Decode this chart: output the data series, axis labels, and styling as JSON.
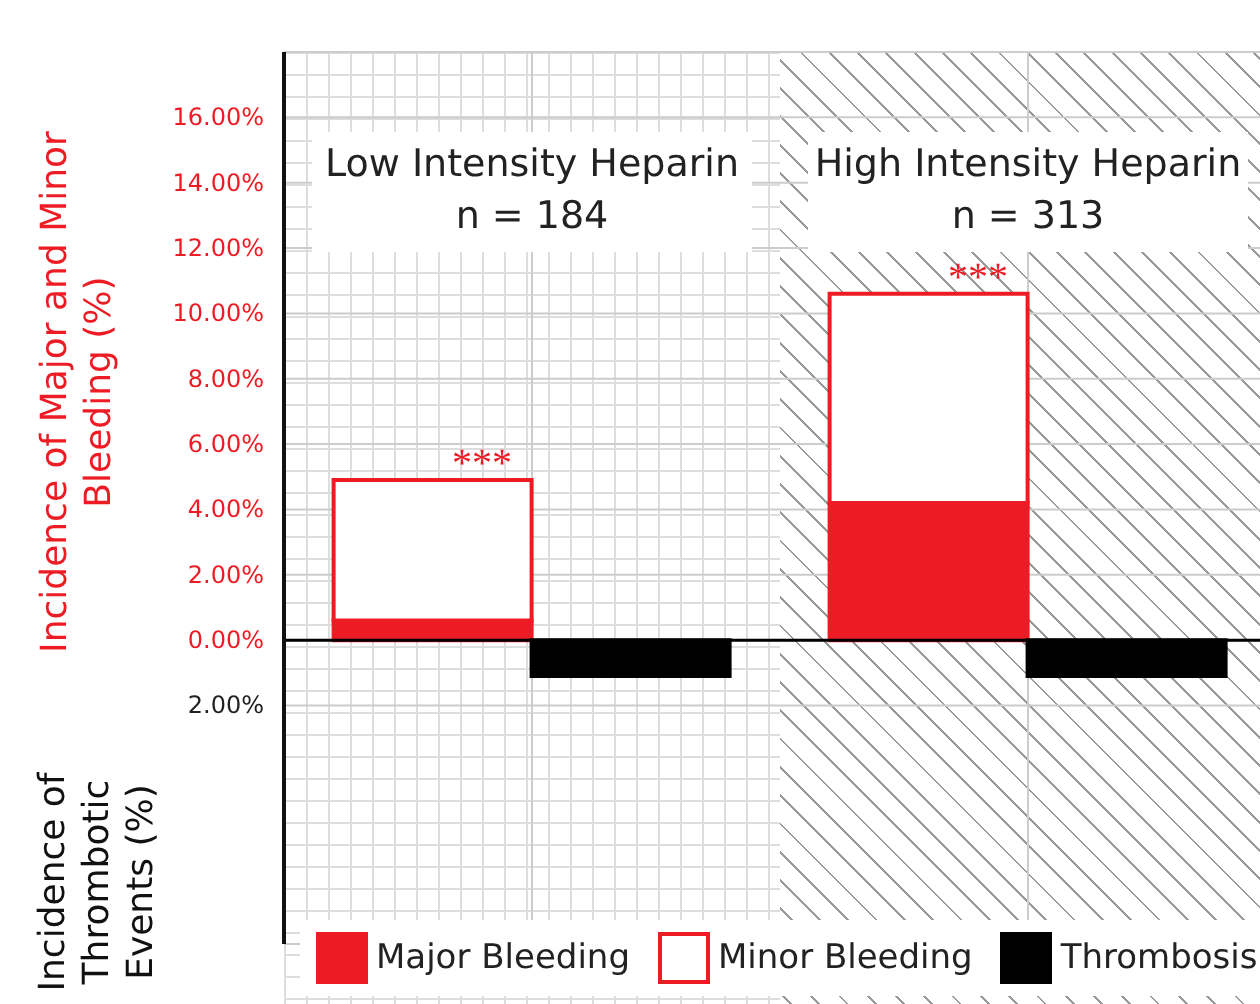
{
  "chart_data": {
    "type": "bar",
    "stacked": true,
    "ylabel": "Incidence of Major and Minor Bleeding (%)",
    "categories": [
      "Low Intensity Heparin\nn = 184",
      "High Intensity Heparin\nn = 313"
    ],
    "series": [
      {
        "name": "Major Bleeding",
        "color": "#ed1c24",
        "values": [
          0.6,
          4.2
        ]
      },
      {
        "name": "Minor Bleeding",
        "color": "#ffffff",
        "values": [
          4.3,
          6.4
        ]
      },
      {
        "name": "Thrombosis",
        "color": "#000000",
        "values": [
          -1.1,
          -1.1
        ]
      }
    ],
    "ylim": [
      -9.3,
      18
    ],
    "yticks": [
      {
        "value": -2,
        "label": "2.00%"
      },
      {
        "value": 0,
        "label": "0.00%"
      },
      {
        "value": 2,
        "label": "2.00%"
      },
      {
        "value": 4,
        "label": "4.00%"
      },
      {
        "value": 6,
        "label": "6.00%"
      },
      {
        "value": 8,
        "label": "8.00%"
      },
      {
        "value": 10,
        "label": "10.00%"
      },
      {
        "value": 12,
        "label": "12.00%"
      },
      {
        "value": 14,
        "label": "14.00%"
      },
      {
        "value": 16,
        "label": "16.00%"
      }
    ],
    "ref_lines": [
      {
        "axis": "y",
        "value": 0,
        "color": "#000000"
      }
    ],
    "annotations": [
      {
        "text": "***",
        "x": "Low Intensity Heparin\nn = 184",
        "y": 4.9
      },
      {
        "text": "***",
        "x": "High Intensity Heparin\nn = 313",
        "y": 10.6
      },
      "Incidence of Thrombotic Events (%)"
    ],
    "grid": true,
    "legend": "bottom"
  }
}
